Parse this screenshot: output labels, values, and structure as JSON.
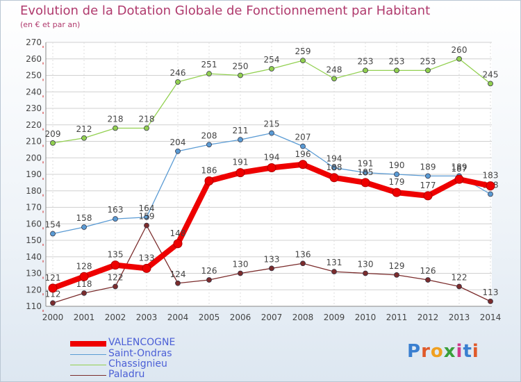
{
  "title": "Evolution de la Dotation Globale de Fonctionnement par Habitant",
  "subtitle": "(en € et par an)",
  "logo_text": "Proxiti",
  "chart_data": {
    "type": "line",
    "x": [
      "2000",
      "2001",
      "2002",
      "2003",
      "2004",
      "2005",
      "2006",
      "2007",
      "2008",
      "2009",
      "2010",
      "2011",
      "2012",
      "2013",
      "2014"
    ],
    "ylim": [
      110,
      270
    ],
    "yticks": [
      110,
      120,
      130,
      140,
      150,
      160,
      170,
      180,
      190,
      200,
      210,
      220,
      230,
      240,
      250,
      260,
      270
    ],
    "grid": true,
    "legend_position": "bottom-left",
    "series": [
      {
        "name": "VALENCOGNE",
        "color": "#ee0000",
        "values": [
          121,
          128,
          135,
          133,
          148,
          186,
          191,
          194,
          196,
          188,
          185,
          179,
          177,
          187,
          183
        ]
      },
      {
        "name": "Saint-Ondras",
        "color": "#5a9bd4",
        "values": [
          154,
          158,
          163,
          164,
          204,
          208,
          211,
          215,
          207,
          194,
          191,
          190,
          189,
          189,
          178
        ]
      },
      {
        "name": "Chassignieu",
        "color": "#92d050",
        "values": [
          209,
          212,
          218,
          218,
          246,
          251,
          250,
          254,
          259,
          248,
          253,
          253,
          253,
          260,
          245
        ]
      },
      {
        "name": "Paladru",
        "color": "#7b2c2c",
        "values": [
          112,
          118,
          122,
          159,
          124,
          126,
          130,
          133,
          136,
          131,
          130,
          129,
          126,
          122,
          113
        ]
      }
    ]
  }
}
